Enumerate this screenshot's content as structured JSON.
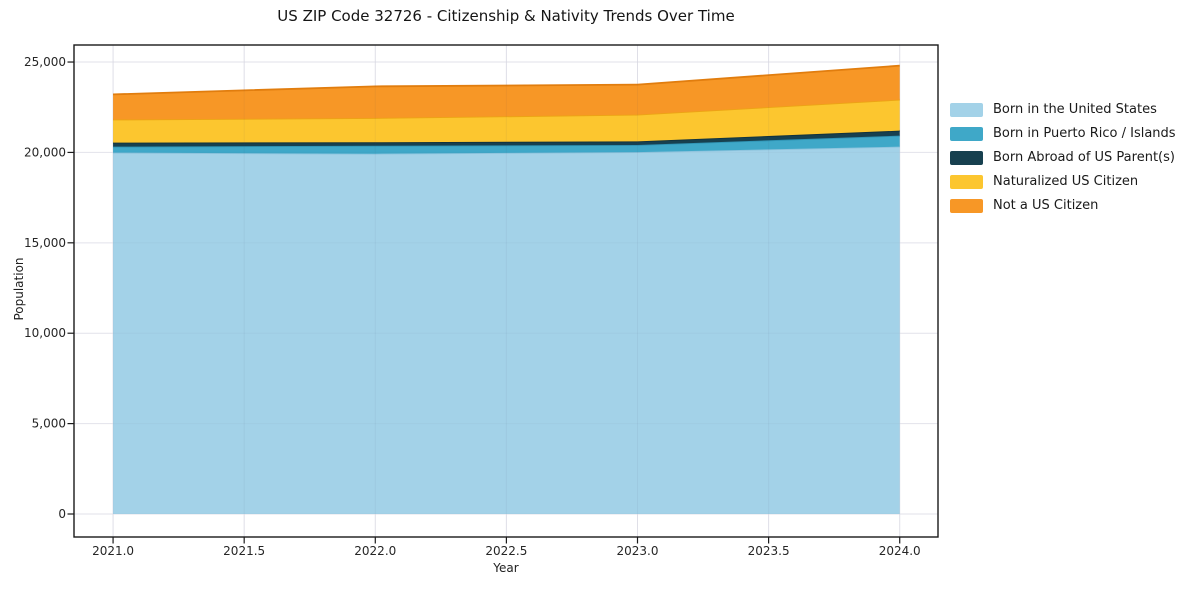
{
  "title": "US ZIP Code 32726 - Citizenship & Nativity Trends Over Time",
  "chart_data": {
    "type": "area",
    "stacked": true,
    "title": "US ZIP Code 32726 - Citizenship & Nativity Trends Over Time",
    "xlabel": "Year",
    "ylabel": "Population",
    "x": [
      2021,
      2022,
      2023,
      2024
    ],
    "xlim": [
      2020.851,
      2024.146
    ],
    "ylim": [
      -1272,
      25942
    ],
    "xticks": [
      2021.0,
      2021.5,
      2022.0,
      2022.5,
      2023.0,
      2023.5,
      2024.0
    ],
    "xtick_labels": [
      "2021.0",
      "2021.5",
      "2022.0",
      "2022.5",
      "2023.0",
      "2023.5",
      "2024.0"
    ],
    "yticks": [
      0,
      5000,
      10000,
      15000,
      20000,
      25000
    ],
    "ytick_labels": [
      "0",
      "5,000",
      "10,000",
      "15,000",
      "20,000",
      "25,000"
    ],
    "grid": true,
    "legend_position": "right",
    "series": [
      {
        "name": "Born in the United States",
        "color": "#a3d2e8",
        "edge": "#8cc3dd",
        "values": [
          19990,
          19930,
          20020,
          20320
        ]
      },
      {
        "name": "Born in Puerto Rico / Islands",
        "color": "#3fa8c8",
        "edge": "#2f93b4",
        "values": [
          330,
          440,
          390,
          610
        ]
      },
      {
        "name": "Born Abroad of US Parent(s)",
        "color": "#17404f",
        "edge": "#11323e",
        "values": [
          220,
          195,
          200,
          275
        ]
      },
      {
        "name": "Naturalized US Citizen",
        "color": "#fcc62f",
        "edge": "#eca414",
        "values": [
          1280,
          1340,
          1480,
          1715
        ]
      },
      {
        "name": "Not a US Citizen",
        "color": "#f79726",
        "edge": "#e17d0e",
        "values": [
          1390,
          1750,
          1660,
          1880
        ]
      }
    ],
    "totals": [
      23210,
      23655,
      23750,
      24800
    ]
  }
}
